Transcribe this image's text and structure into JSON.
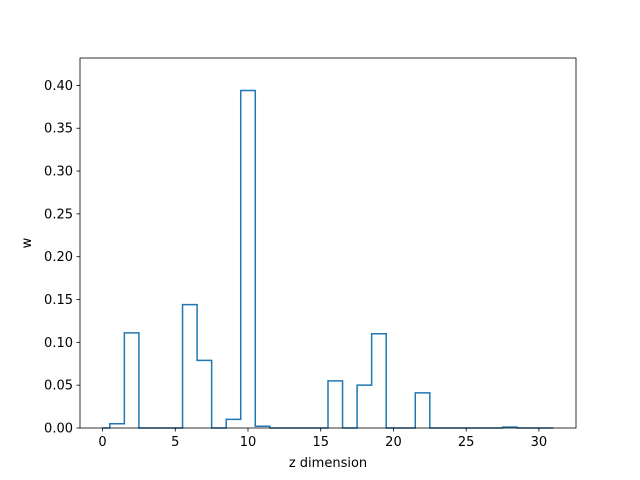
{
  "chart_data": {
    "type": "step",
    "xlabel": "z dimension",
    "ylabel": "w",
    "xlim": [
      -1.55,
      32.55
    ],
    "ylim": [
      0,
      0.432
    ],
    "xticks": [
      0,
      5,
      10,
      15,
      20,
      25,
      30
    ],
    "yticks": [
      0.0,
      0.05,
      0.1,
      0.15,
      0.2,
      0.25,
      0.3,
      0.35,
      0.4
    ],
    "ytick_labels": [
      "0.00",
      "0.05",
      "0.10",
      "0.15",
      "0.20",
      "0.25",
      "0.30",
      "0.35",
      "0.40"
    ],
    "grid": false,
    "color": "#1f77b4",
    "x": [
      0,
      1,
      2,
      3,
      4,
      5,
      6,
      7,
      8,
      9,
      10,
      11,
      12,
      13,
      14,
      15,
      16,
      17,
      18,
      19,
      20,
      21,
      22,
      23,
      24,
      25,
      26,
      27,
      28,
      29,
      30,
      31
    ],
    "values": [
      0.0,
      0.005,
      0.111,
      0.0,
      0.0,
      0.0,
      0.144,
      0.079,
      0.0,
      0.01,
      0.394,
      0.002,
      0.0,
      0.0,
      0.0,
      0.0,
      0.055,
      0.0,
      0.05,
      0.11,
      0.0,
      0.0,
      0.041,
      0.0,
      0.0,
      0.0,
      0.0,
      0.0,
      0.001,
      0.0,
      0.0,
      0.0
    ]
  }
}
